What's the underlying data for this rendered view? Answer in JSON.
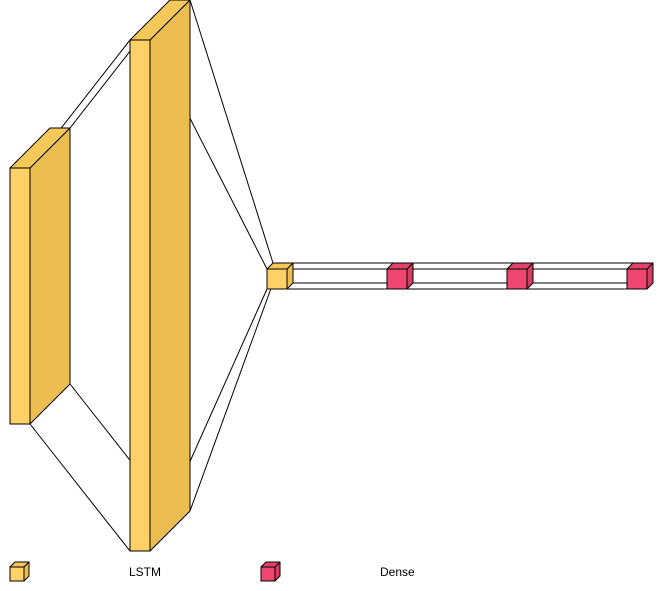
{
  "colors": {
    "lstm_front": "#ffd166",
    "lstm_side": "#ecbe52",
    "lstm_top": "#f6c85a",
    "dense_front": "#ef476f",
    "dense_side": "#d43d60",
    "dense_top": "#e24468",
    "edge": "#000000",
    "background": "#ffffff"
  },
  "layers": [
    {
      "type": "LSTM"
    },
    {
      "type": "LSTM"
    },
    {
      "type": "LSTM"
    },
    {
      "type": "Dense"
    },
    {
      "type": "Dense"
    },
    {
      "type": "Dense"
    }
  ],
  "legend": [
    {
      "label": "LSTM",
      "color_key": "lstm",
      "icon": "lstm-cube-icon"
    },
    {
      "label": "Dense",
      "color_key": "dense",
      "icon": "dense-cube-icon"
    }
  ]
}
